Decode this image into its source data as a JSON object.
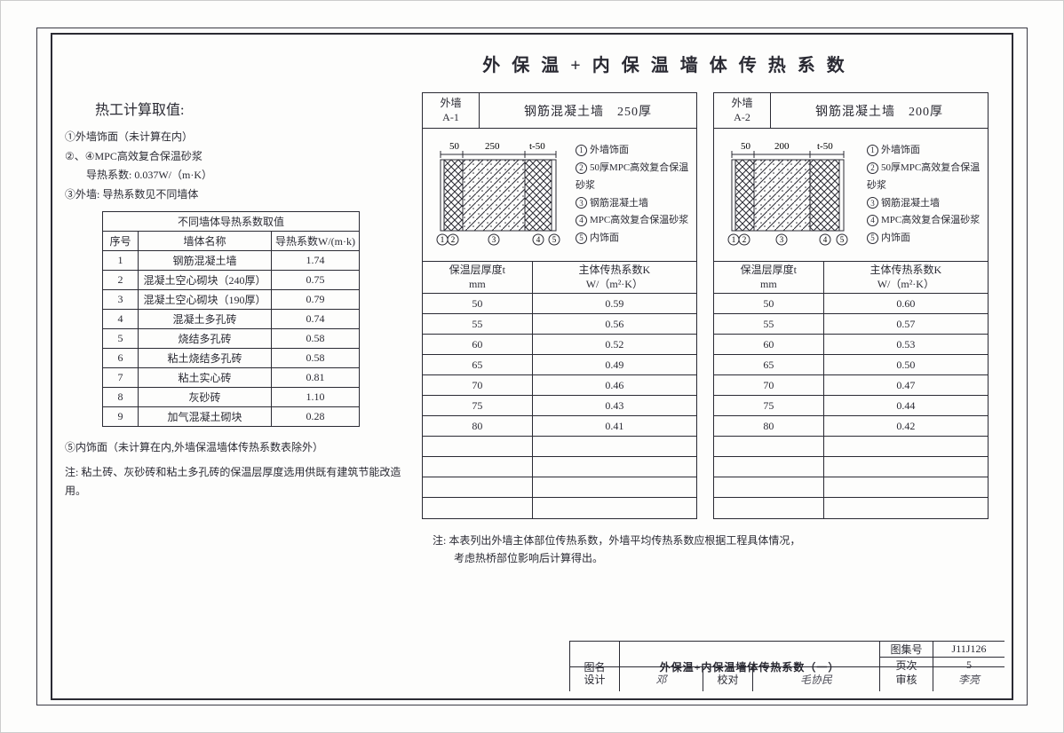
{
  "title": "外 保 温 + 内 保 温 墙 体 传 热 系 数",
  "calc": {
    "heading": "热工计算取值:",
    "l1": "①外墙饰面（未计算在内）",
    "l2": "②、④MPC高效复合保温砂浆",
    "l3": "导热系数: 0.037W/（m·K）",
    "l4": "③外墙: 导热系数见不同墙体"
  },
  "mat_table": {
    "title": "不同墙体导热系数取值",
    "col1": "序号",
    "col2": "墙体名称",
    "col3": "导热系数W/(m·k)",
    "rows": [
      [
        "1",
        "钢筋混凝土墙",
        "1.74"
      ],
      [
        "2",
        "混凝土空心砌块（240厚）",
        "0.75"
      ],
      [
        "3",
        "混凝土空心砌块（190厚）",
        "0.79"
      ],
      [
        "4",
        "混凝土多孔砖",
        "0.74"
      ],
      [
        "5",
        "烧结多孔砖",
        "0.58"
      ],
      [
        "6",
        "粘土烧结多孔砖",
        "0.58"
      ],
      [
        "7",
        "粘土实心砖",
        "0.81"
      ],
      [
        "8",
        "灰砂砖",
        "1.10"
      ],
      [
        "9",
        "加气混凝土砌块",
        "0.28"
      ]
    ]
  },
  "note5": "⑤内饰面（未计算在内,外墙保温墙体传热系数表除外）",
  "note_footer": "注: 粘土砖、灰砂砖和粘土多孔砖的保温层厚度选用供既有建筑节能改造用。",
  "wall_a1": {
    "id_top": "外墙",
    "id_bot": "A-1",
    "title": "钢筋混凝土墙　250厚",
    "dims": {
      "d1": "50",
      "d2": "250",
      "d3": "t-50"
    },
    "legend": {
      "l1": "外墙饰面",
      "l2": "50厚MPC高效复合保温砂浆",
      "l3": "钢筋混凝土墙",
      "l4": "MPC高效复合保温砂浆",
      "l5": "内饰面"
    },
    "thead1": "保温层厚度t\nmm",
    "thead2": "主体传热系数K\nW/（m²·K）",
    "rows": [
      [
        "50",
        "0.59"
      ],
      [
        "55",
        "0.56"
      ],
      [
        "60",
        "0.52"
      ],
      [
        "65",
        "0.49"
      ],
      [
        "70",
        "0.46"
      ],
      [
        "75",
        "0.43"
      ],
      [
        "80",
        "0.41"
      ],
      [
        "",
        ""
      ],
      [
        "",
        ""
      ],
      [
        "",
        ""
      ],
      [
        "",
        ""
      ]
    ]
  },
  "wall_a2": {
    "id_top": "外墙",
    "id_bot": "A-2",
    "title": "钢筋混凝土墙　200厚",
    "dims": {
      "d1": "50",
      "d2": "200",
      "d3": "t-50"
    },
    "legend": {
      "l1": "外墙饰面",
      "l2": "50厚MPC高效复合保温砂浆",
      "l3": "钢筋混凝土墙",
      "l4": "MPC高效复合保温砂浆",
      "l5": "内饰面"
    },
    "thead1": "保温层厚度t\nmm",
    "thead2": "主体传热系数K\nW/（m²·K）",
    "rows": [
      [
        "50",
        "0.60"
      ],
      [
        "55",
        "0.57"
      ],
      [
        "60",
        "0.53"
      ],
      [
        "65",
        "0.50"
      ],
      [
        "70",
        "0.47"
      ],
      [
        "75",
        "0.44"
      ],
      [
        "80",
        "0.42"
      ],
      [
        "",
        ""
      ],
      [
        "",
        ""
      ],
      [
        "",
        ""
      ],
      [
        "",
        ""
      ]
    ]
  },
  "bottom_note": {
    "l1": "注: 本表列出外墙主体部位传热系数，外墙平均传热系数应根据工程具体情况，",
    "l2": "考虑热桥部位影响后计算得出。"
  },
  "titleblock": {
    "tuming_label": "图名",
    "tuming": "外保温+内保温墙体传热系数（一）",
    "tujihao_label": "图集号",
    "tujihao": "J11J126",
    "yeci_label": "页次",
    "yeci": "5",
    "sheji_label": "设计",
    "sheji_sig": "邓",
    "jiaodui_label": "校对",
    "jiaodui_sig": "毛协民",
    "shenhe_label": "审核",
    "shenhe_sig": "李亮"
  },
  "colors": {
    "line": "#2a2a33",
    "bg": "#fdfdfc",
    "hatch": "#3a3a44"
  }
}
